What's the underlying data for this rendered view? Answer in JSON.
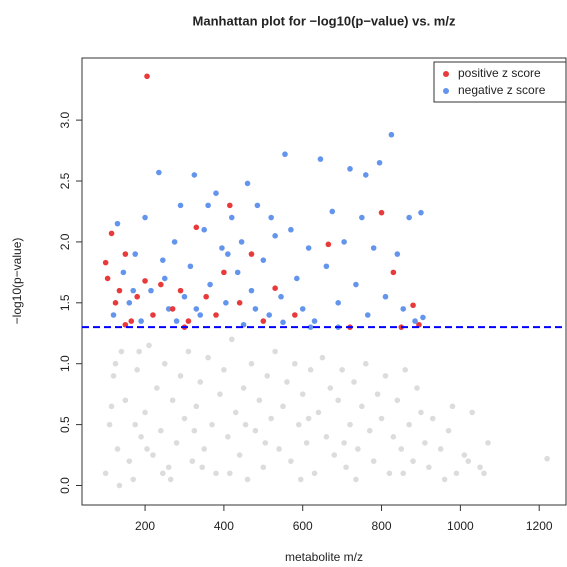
{
  "chart_data": {
    "type": "scatter",
    "title": "Manhattan plot for −log10(p−value) vs. m/z",
    "x_label": "metabolite m/z",
    "y_label": "−log10(p−value)",
    "xlim": [
      40,
      1268
    ],
    "ylim": [
      -0.16,
      3.51
    ],
    "xticks": [
      200,
      400,
      600,
      800,
      1000,
      1200
    ],
    "yticks": [
      {
        "value": 0,
        "label": "0.0"
      },
      0.5,
      {
        "value": 1,
        "label": "1.0"
      },
      1.5,
      {
        "value": 2,
        "label": "2.0"
      },
      2.5,
      {
        "value": 3,
        "label": "3.0"
      }
    ],
    "threshold": 1.3,
    "threshold_color": "#0000ff",
    "legend": "upper right",
    "series": [
      {
        "color": "#dcdcdc",
        "x": [
          100,
          110,
          120,
          130,
          140,
          150,
          160,
          170,
          180,
          190,
          200,
          210,
          220,
          230,
          240,
          250,
          260,
          270,
          280,
          290,
          300,
          310,
          320,
          330,
          340,
          350,
          360,
          370,
          380,
          390,
          400,
          410,
          420,
          430,
          440,
          450,
          460,
          470,
          480,
          490,
          500,
          510,
          520,
          530,
          540,
          550,
          560,
          570,
          580,
          590,
          600,
          610,
          620,
          630,
          640,
          650,
          660,
          670,
          680,
          690,
          700,
          710,
          720,
          730,
          740,
          750,
          760,
          770,
          780,
          790,
          800,
          810,
          820,
          830,
          840,
          850,
          860,
          870,
          880,
          890,
          900,
          910,
          920,
          930,
          950,
          970,
          990,
          1010,
          1030,
          1050,
          1070,
          1020,
          980,
          960,
          1060,
          1220,
          115,
          135,
          175,
          205,
          265,
          345,
          415,
          505,
          595,
          705,
          125,
          185,
          245,
          325,
          455,
          615,
          735,
          855
        ],
        "values": [
          0.1,
          0.5,
          0.9,
          0.3,
          1.1,
          0.7,
          0.2,
          0.05,
          0.95,
          0.4,
          0.6,
          1.15,
          0.25,
          0.8,
          0.45,
          1.0,
          0.15,
          0.7,
          0.35,
          0.9,
          0.55,
          1.1,
          0.2,
          0.65,
          0.85,
          0.3,
          1.05,
          0.5,
          0.1,
          0.75,
          0.95,
          0.4,
          1.2,
          0.6,
          0.25,
          0.8,
          0.05,
          1.0,
          0.45,
          0.7,
          0.15,
          0.9,
          0.55,
          1.1,
          0.3,
          0.65,
          0.85,
          0.2,
          1.0,
          0.5,
          0.75,
          0.35,
          0.95,
          0.1,
          0.6,
          1.05,
          0.4,
          0.8,
          0.25,
          0.7,
          0.95,
          0.15,
          0.5,
          0.85,
          0.3,
          0.65,
          1.0,
          0.45,
          0.2,
          0.75,
          0.55,
          0.9,
          0.1,
          0.4,
          0.7,
          0.3,
          0.95,
          0.5,
          0.2,
          0.8,
          0.6,
          0.35,
          0.15,
          0.55,
          0.3,
          0.45,
          0.1,
          0.25,
          0.6,
          0.15,
          0.35,
          0.2,
          0.65,
          0.05,
          0.1,
          0.22,
          0.65,
          0.0,
          0.5,
          0.3,
          0.05,
          0.15,
          0.1,
          0.35,
          0.05,
          0.35,
          1.0,
          1.1,
          0.1,
          0.45,
          0.5,
          0.55,
          0.05,
          0.1
        ]
      },
      {
        "name": "negative z score",
        "color": "#6495ed",
        "x": [
          120,
          130,
          145,
          160,
          175,
          190,
          200,
          215,
          235,
          245,
          260,
          275,
          290,
          300,
          315,
          325,
          340,
          350,
          365,
          380,
          395,
          405,
          420,
          435,
          445,
          460,
          470,
          485,
          500,
          515,
          530,
          545,
          555,
          570,
          585,
          600,
          615,
          630,
          645,
          660,
          675,
          690,
          705,
          720,
          735,
          750,
          765,
          780,
          795,
          810,
          825,
          840,
          855,
          870,
          885,
          900,
          905,
          480,
          410,
          330,
          250,
          170,
          620,
          450,
          550,
          760,
          690,
          520,
          360,
          280
        ],
        "values": [
          1.4,
          2.15,
          1.75,
          1.5,
          1.9,
          1.35,
          2.2,
          1.6,
          2.57,
          1.85,
          1.45,
          2.0,
          2.3,
          1.55,
          1.8,
          2.55,
          1.4,
          2.1,
          1.65,
          2.4,
          1.95,
          1.5,
          2.2,
          1.75,
          2.0,
          2.48,
          1.6,
          2.3,
          1.85,
          1.4,
          2.05,
          1.55,
          2.72,
          2.1,
          1.7,
          1.45,
          1.95,
          1.35,
          2.68,
          1.8,
          2.25,
          1.5,
          2.0,
          2.6,
          1.65,
          2.2,
          1.4,
          1.95,
          2.65,
          1.55,
          2.88,
          1.9,
          1.45,
          2.2,
          1.35,
          2.24,
          1.38,
          1.45,
          1.9,
          1.45,
          1.7,
          1.6,
          1.3,
          1.32,
          1.34,
          2.55,
          1.3,
          2.2,
          2.3,
          1.35
        ]
      },
      {
        "name": "positive z score",
        "color": "#e83a3a",
        "x": [
          100,
          105,
          115,
          125,
          135,
          150,
          165,
          180,
          200,
          205,
          220,
          240,
          270,
          290,
          310,
          330,
          355,
          380,
          400,
          415,
          440,
          470,
          500,
          530,
          580,
          665,
          720,
          800,
          830,
          880,
          895,
          850,
          300,
          150
        ],
        "values": [
          1.83,
          1.7,
          2.07,
          1.5,
          1.6,
          1.9,
          1.35,
          1.55,
          1.68,
          3.36,
          1.4,
          1.65,
          1.45,
          1.6,
          1.35,
          2.12,
          1.55,
          1.4,
          1.75,
          2.3,
          1.5,
          1.9,
          1.35,
          1.62,
          1.4,
          1.98,
          1.3,
          2.24,
          1.75,
          1.48,
          1.32,
          1.3,
          1.3,
          1.32
        ]
      }
    ]
  }
}
